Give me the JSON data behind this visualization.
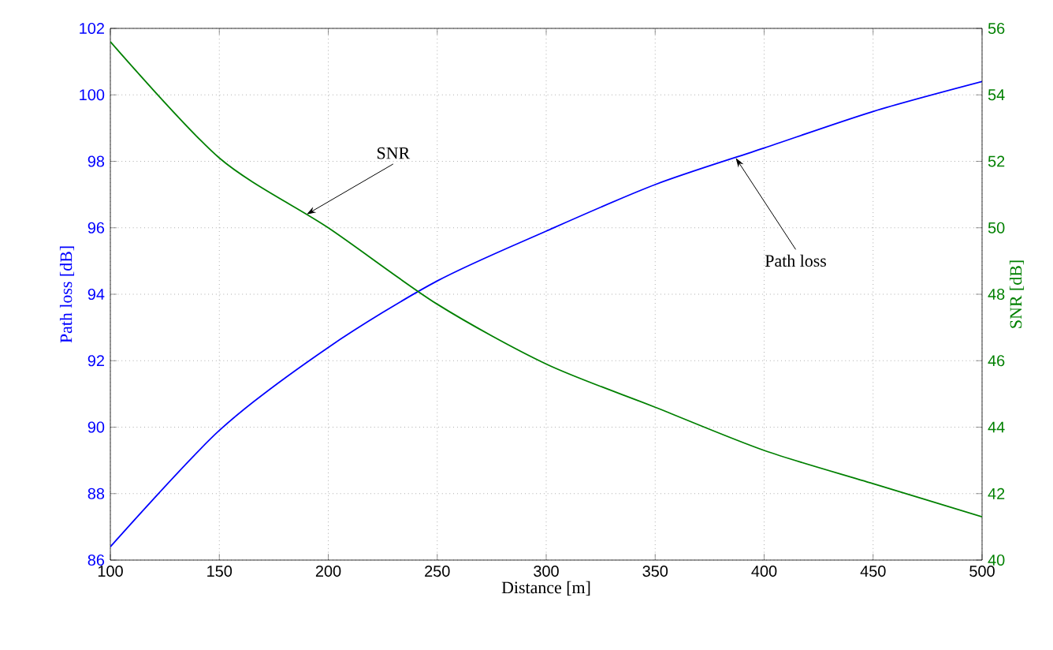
{
  "chart_data": {
    "type": "line",
    "xlabel": "Distance [m]",
    "ylabel": "Path loss [dB]",
    "y2label": "SNR [dB]",
    "x": [
      100,
      150,
      200,
      250,
      300,
      350,
      400,
      450,
      500
    ],
    "series": [
      {
        "color": "#0000ff",
        "values": [
          86.4,
          89.9,
          92.4,
          94.4,
          95.9,
          97.3,
          98.4,
          99.5,
          100.4
        ]
      },
      {
        "color": "#008000",
        "axis": "y2",
        "values": [
          55.6,
          52.1,
          50.0,
          47.7,
          45.9,
          44.6,
          43.3,
          42.3,
          41.3
        ]
      }
    ],
    "xlim": [
      100,
      500
    ],
    "xticks": [
      100,
      150,
      200,
      250,
      300,
      350,
      400,
      450,
      500
    ],
    "ylim": [
      86,
      102
    ],
    "yticks": [
      86,
      88,
      90,
      92,
      94,
      96,
      98,
      100,
      102
    ],
    "y2lim": [
      40,
      56
    ],
    "y2ticks": [
      40,
      42,
      44,
      46,
      48,
      50,
      52,
      54,
      56
    ],
    "annotations": [
      {
        "text": "SNR",
        "x": 190,
        "y": 96.4
      },
      {
        "text": "Path loss",
        "x": 387,
        "y": 98.1
      }
    ],
    "grid": true,
    "marker": "none",
    "line_style": "solid"
  }
}
